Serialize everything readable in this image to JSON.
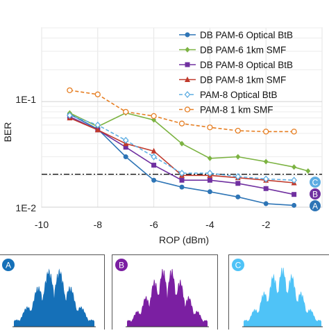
{
  "chart_data": {
    "type": "line",
    "title": "",
    "xlabel": "ROP (dBm)",
    "ylabel": "BER",
    "xlim": [
      -10,
      0
    ],
    "ylim": [
      0.01,
      0.5
    ],
    "y_scale": "log",
    "x_ticks": [
      "-10",
      "-8",
      "-6",
      "-4",
      "-2"
    ],
    "y_ticks": [
      "1E-2",
      "1E-1"
    ],
    "grid": true,
    "legend_position": "top-right",
    "threshold": 0.0205,
    "series": [
      {
        "name": "DB PAM-6 Optical BtB",
        "color": "#2e75b6",
        "marker": "circle",
        "line": "solid",
        "x": [
          -9,
          -8,
          -7,
          -6,
          -5,
          -4,
          -3,
          -2,
          -1
        ],
        "y": [
          0.076,
          0.055,
          0.03,
          0.018,
          0.0155,
          0.014,
          0.0125,
          0.0108,
          0.0104
        ]
      },
      {
        "name": "DB PAM-6 1km SMF",
        "color": "#7cb342",
        "marker": "diamond",
        "line": "solid",
        "x": [
          -9,
          -8,
          -7,
          -6,
          -5,
          -4,
          -3,
          -2,
          -1,
          -0.5
        ],
        "y": [
          0.078,
          0.058,
          0.078,
          0.067,
          0.04,
          0.029,
          0.03,
          0.027,
          0.024,
          0.022
        ]
      },
      {
        "name": "DB PAM-8 Optical BtB",
        "color": "#7030a0",
        "marker": "square",
        "line": "solid",
        "x": [
          -9,
          -8,
          -7,
          -6,
          -5,
          -4,
          -3,
          -2,
          -1
        ],
        "y": [
          0.072,
          0.054,
          0.037,
          0.025,
          0.018,
          0.018,
          0.0168,
          0.015,
          0.0132
        ]
      },
      {
        "name": "DB PAM-8 1km SMF",
        "color": "#c0392b",
        "marker": "triangle",
        "line": "solid",
        "x": [
          -9,
          -8,
          -7,
          -6,
          -5,
          -4,
          -3,
          -2,
          -1
        ],
        "y": [
          0.07,
          0.054,
          0.04,
          0.034,
          0.02,
          0.02,
          0.019,
          0.018,
          0.017
        ]
      },
      {
        "name": "PAM-8 Optical BtB",
        "color": "#5dade2",
        "marker": "diamond-open",
        "line": "dashed",
        "x": [
          -9,
          -8,
          -7,
          -6,
          -5,
          -4,
          -3,
          -2,
          -1
        ],
        "y": [
          0.074,
          0.06,
          0.043,
          0.03,
          0.021,
          0.021,
          0.0195,
          0.0185,
          0.018
        ]
      },
      {
        "name": "PAM-8 1 km SMF",
        "color": "#e67e22",
        "marker": "circle-open",
        "line": "dashed",
        "x": [
          -9,
          -8,
          -7,
          -6,
          -5,
          -4,
          -3,
          -2,
          -1
        ],
        "y": [
          0.128,
          0.117,
          0.08,
          0.073,
          0.062,
          0.057,
          0.053,
          0.052,
          0.052
        ]
      }
    ],
    "badges": [
      {
        "label": "A",
        "color": "#2e75b6"
      },
      {
        "label": "B",
        "color": "#7030a0"
      },
      {
        "label": "C",
        "color": "#5dade2"
      }
    ],
    "histograms": [
      {
        "label": "A",
        "color": "#1570b8"
      },
      {
        "label": "B",
        "color": "#7b1fa2"
      },
      {
        "label": "C",
        "color": "#4fc3f7"
      }
    ]
  }
}
